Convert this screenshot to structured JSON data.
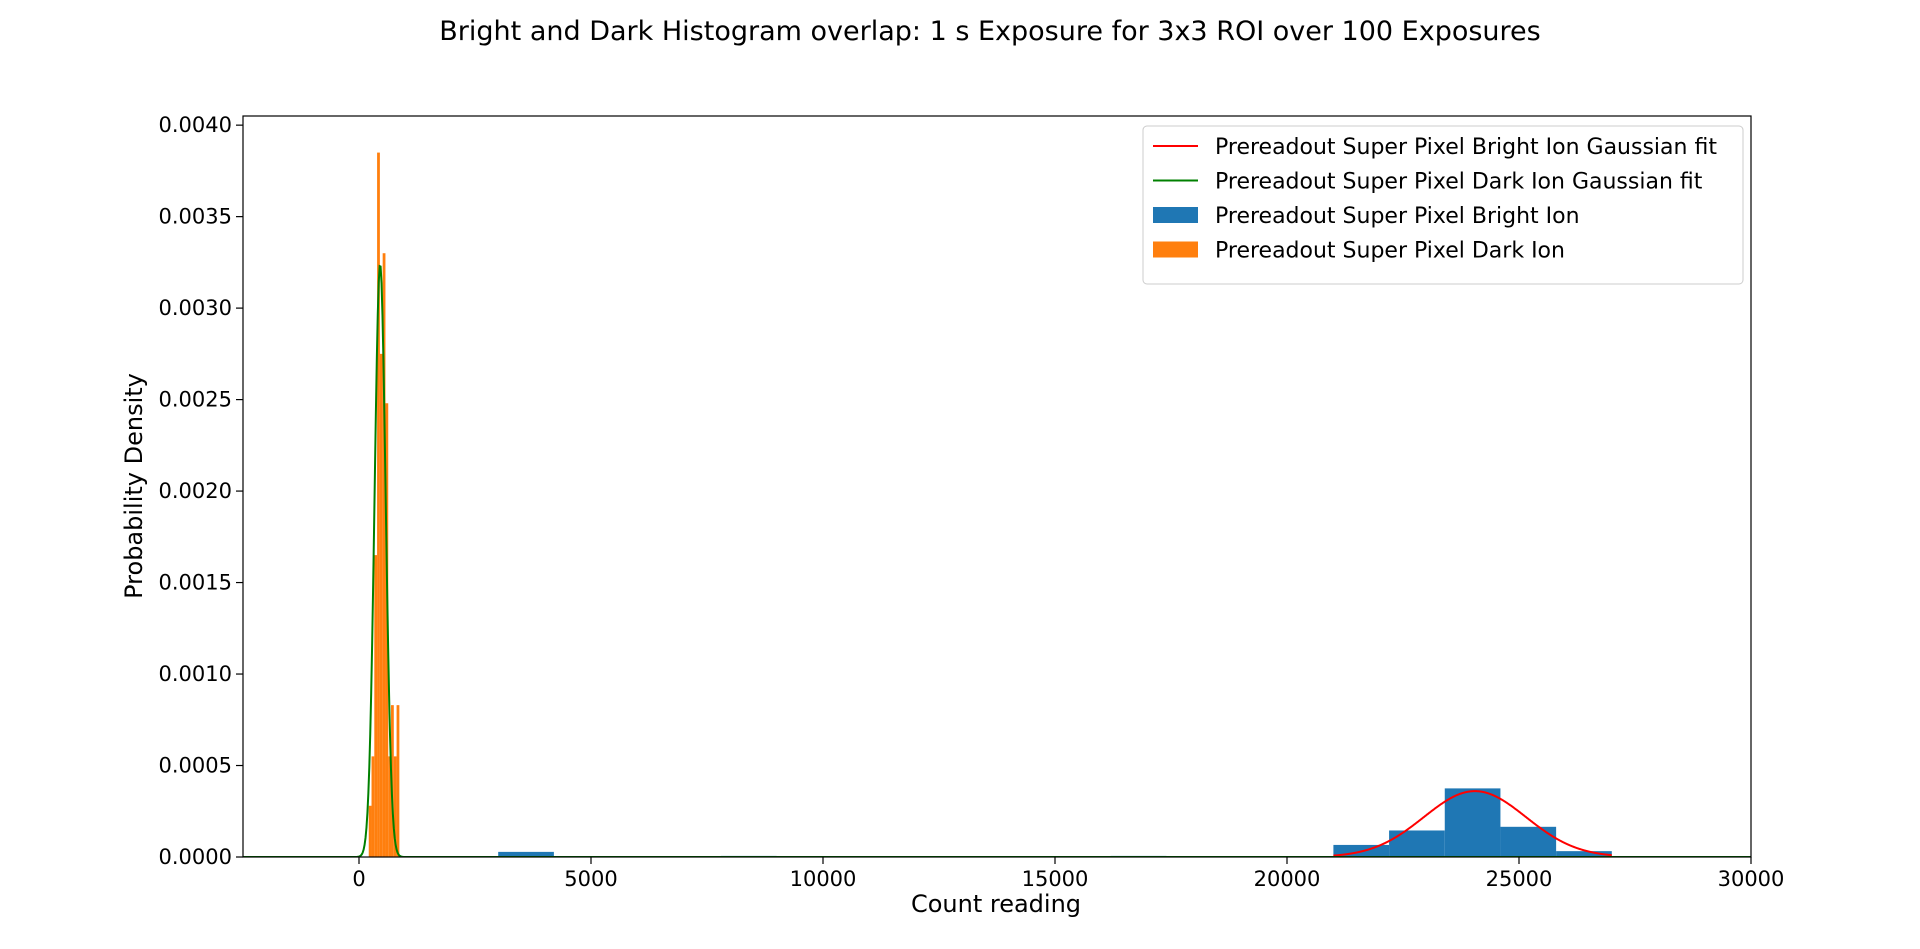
{
  "chart_data": {
    "type": "bar",
    "title": "Bright and Dark Histogram overlap: 1 s Exposure for 3x3 ROI over 100 Exposures",
    "xlabel": "Count reading",
    "ylabel": "Probability Density",
    "xlim": [
      -2500,
      30000
    ],
    "ylim": [
      0,
      0.00405
    ],
    "xticks": [
      0,
      5000,
      10000,
      15000,
      20000,
      25000,
      30000
    ],
    "xtick_labels": [
      "0",
      "5000",
      "10000",
      "15000",
      "20000",
      "25000",
      "30000"
    ],
    "yticks": [
      0,
      0.0005,
      0.001,
      0.0015,
      0.002,
      0.0025,
      0.003,
      0.0035,
      0.004
    ],
    "ytick_labels": [
      "0.0000",
      "0.0005",
      "0.0010",
      "0.0015",
      "0.0020",
      "0.0025",
      "0.0030",
      "0.0035",
      "0.0040"
    ],
    "grid": false,
    "legend_position": "top-right",
    "histograms": [
      {
        "name": "Prereadout Super Pixel Bright Ion",
        "color": "#1f77b4",
        "bin_edges": [
          3000,
          4200,
          5400,
          6600,
          7800,
          9000,
          10200,
          11400,
          12600,
          13800,
          15000,
          16200,
          17400,
          18600,
          19800,
          21000,
          22200,
          23400,
          24600,
          25800,
          27000
        ],
        "values": [
          2.8e-05,
          0,
          0,
          0,
          6e-06,
          0,
          0,
          0,
          0,
          0,
          0,
          6e-06,
          0,
          0,
          0,
          6.6e-05,
          0.000145,
          0.000375,
          0.000165,
          3.2e-05
        ]
      },
      {
        "name": "Prereadout Super Pixel Dark Ion",
        "color": "#ff7f0e",
        "bin_edges": [
          210,
          270,
          330,
          390,
          450,
          510,
          570,
          630,
          690,
          750,
          810,
          870
        ],
        "values": [
          0.00028,
          0.00055,
          0.00165,
          0.00385,
          0.00275,
          0.0033,
          0.00248,
          0.00055,
          0.00083,
          0.00055,
          0.00083
        ]
      }
    ],
    "fits": [
      {
        "name": "Prereadout Super Pixel Bright Ion Gaussian fit",
        "color": "#ff0000",
        "function": "gaussian",
        "amplitude": 0.00036,
        "mean": 24050,
        "sigma": 1100,
        "x_range": [
          21000,
          27000
        ]
      },
      {
        "name": "Prereadout Super Pixel Dark Ion Gaussian fit",
        "color": "#008000",
        "function": "gaussian",
        "amplitude": 0.00324,
        "mean": 455,
        "sigma": 120,
        "x_range": [
          -2500,
          30000
        ]
      }
    ],
    "legend": [
      {
        "label": "Prereadout Super Pixel Bright Ion Gaussian fit",
        "kind": "line",
        "color": "#ff0000"
      },
      {
        "label": "Prereadout Super Pixel Dark Ion Gaussian fit",
        "kind": "line",
        "color": "#008000"
      },
      {
        "label": "Prereadout Super Pixel Bright Ion",
        "kind": "patch",
        "color": "#1f77b4"
      },
      {
        "label": "Prereadout Super Pixel Dark Ion",
        "kind": "patch",
        "color": "#ff7f0e"
      }
    ]
  }
}
